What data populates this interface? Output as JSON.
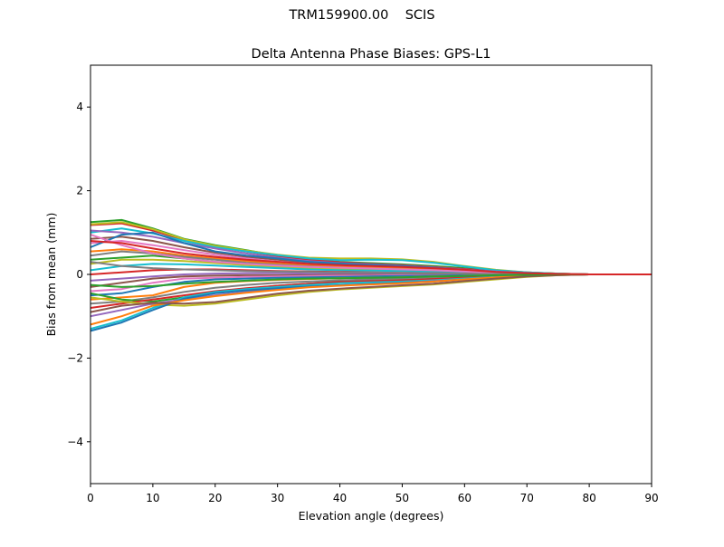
{
  "figure": {
    "suptitle": "TRM159900.00    SCIS"
  },
  "chart_data": {
    "type": "line",
    "title": "Delta Antenna Phase Biases: GPS-L1",
    "xlabel": "Elevation angle (degrees)",
    "ylabel": "Bias from mean (mm)",
    "xlim": [
      0,
      90
    ],
    "ylim": [
      -5,
      5
    ],
    "xticks": [
      0,
      10,
      20,
      30,
      40,
      50,
      60,
      70,
      80,
      90
    ],
    "yticks": [
      -4,
      -2,
      0,
      2,
      4
    ],
    "ytick_labels": [
      "−4",
      "−2",
      "0",
      "2",
      "4"
    ],
    "grid": false,
    "x": [
      0,
      5,
      10,
      15,
      20,
      25,
      30,
      35,
      40,
      45,
      50,
      55,
      60,
      65,
      70,
      75,
      80,
      85,
      90
    ],
    "series": [
      {
        "color": "#2ca02c",
        "values": [
          1.25,
          1.3,
          1.1,
          0.85,
          0.7,
          0.58,
          0.45,
          0.36,
          0.3,
          0.27,
          0.24,
          0.2,
          0.15,
          0.09,
          0.05,
          0.02,
          0.0,
          0.0,
          0.0
        ]
      },
      {
        "color": "#d62728",
        "values": [
          1.18,
          1.22,
          1.05,
          0.82,
          0.66,
          0.55,
          0.44,
          0.35,
          0.29,
          0.25,
          0.22,
          0.18,
          0.13,
          0.08,
          0.04,
          0.02,
          0.0,
          0.0,
          0.0
        ]
      },
      {
        "color": "#bcbd22",
        "values": [
          1.2,
          1.25,
          1.08,
          0.84,
          0.68,
          0.57,
          0.47,
          0.4,
          0.38,
          0.38,
          0.36,
          0.3,
          0.2,
          0.11,
          0.05,
          0.02,
          0.0,
          0.0,
          0.0
        ]
      },
      {
        "color": "#17becf",
        "values": [
          1.0,
          1.1,
          0.98,
          0.8,
          0.65,
          0.55,
          0.46,
          0.38,
          0.34,
          0.35,
          0.34,
          0.28,
          0.19,
          0.1,
          0.05,
          0.02,
          0.0,
          0.0,
          0.0
        ]
      },
      {
        "color": "#9467bd",
        "values": [
          1.05,
          1.0,
          0.9,
          0.75,
          0.62,
          0.5,
          0.4,
          0.32,
          0.27,
          0.24,
          0.21,
          0.17,
          0.12,
          0.07,
          0.04,
          0.01,
          0.0,
          0.0,
          0.0
        ]
      },
      {
        "color": "#8c564b",
        "values": [
          0.85,
          0.9,
          0.8,
          0.65,
          0.52,
          0.42,
          0.35,
          0.28,
          0.24,
          0.22,
          0.2,
          0.16,
          0.11,
          0.06,
          0.03,
          0.01,
          0.0,
          0.0,
          0.0
        ]
      },
      {
        "color": "#e377c2",
        "values": [
          0.75,
          0.8,
          0.7,
          0.58,
          0.47,
          0.38,
          0.31,
          0.25,
          0.21,
          0.19,
          0.17,
          0.14,
          0.1,
          0.06,
          0.03,
          0.01,
          0.0,
          0.0,
          0.0
        ]
      },
      {
        "color": "#1f77b4",
        "values": [
          0.65,
          0.95,
          1.0,
          0.75,
          0.55,
          0.45,
          0.38,
          0.3,
          0.26,
          0.23,
          0.2,
          0.16,
          0.11,
          0.06,
          0.03,
          0.01,
          0.0,
          0.0,
          0.0
        ]
      },
      {
        "color": "#ff7f0e",
        "values": [
          0.55,
          0.6,
          0.55,
          0.45,
          0.38,
          0.32,
          0.26,
          0.21,
          0.18,
          0.16,
          0.14,
          0.11,
          0.08,
          0.05,
          0.02,
          0.01,
          0.0,
          0.0,
          0.0
        ]
      },
      {
        "color": "#7f7f7f",
        "values": [
          0.45,
          0.55,
          0.5,
          0.42,
          0.35,
          0.28,
          0.23,
          0.19,
          0.16,
          0.14,
          0.12,
          0.1,
          0.07,
          0.04,
          0.02,
          0.01,
          0.0,
          0.0,
          0.0
        ]
      },
      {
        "color": "#2ca02c",
        "values": [
          0.35,
          0.4,
          0.45,
          0.38,
          0.3,
          0.25,
          0.2,
          0.17,
          0.14,
          0.12,
          0.11,
          0.09,
          0.06,
          0.04,
          0.02,
          0.01,
          0.0,
          0.0,
          0.0
        ]
      },
      {
        "color": "#bcbd22",
        "values": [
          0.25,
          0.35,
          0.35,
          0.32,
          0.27,
          0.22,
          0.18,
          0.15,
          0.13,
          0.11,
          0.1,
          0.08,
          0.06,
          0.03,
          0.02,
          0.0,
          0.0,
          0.0,
          0.0
        ]
      },
      {
        "color": "#17becf",
        "values": [
          0.1,
          0.2,
          0.25,
          0.24,
          0.21,
          0.18,
          0.15,
          0.12,
          0.1,
          0.09,
          0.08,
          0.06,
          0.04,
          0.03,
          0.01,
          0.0,
          0.0,
          0.0,
          0.0
        ]
      },
      {
        "color": "#d62728",
        "values": [
          0.0,
          0.05,
          0.1,
          0.12,
          0.12,
          0.1,
          0.08,
          0.07,
          0.06,
          0.05,
          0.04,
          0.03,
          0.02,
          0.01,
          0.01,
          0.0,
          0.0,
          0.0,
          0.0
        ]
      },
      {
        "color": "#9467bd",
        "values": [
          -0.15,
          -0.1,
          -0.05,
          0.0,
          0.02,
          0.03,
          0.03,
          0.02,
          0.02,
          0.02,
          0.01,
          0.01,
          0.01,
          0.0,
          0.0,
          0.0,
          0.0,
          0.0,
          0.0
        ]
      },
      {
        "color": "#8c564b",
        "values": [
          -0.3,
          -0.2,
          -0.1,
          -0.05,
          -0.03,
          -0.02,
          -0.02,
          -0.02,
          -0.01,
          -0.01,
          -0.01,
          -0.01,
          0.0,
          0.0,
          0.0,
          0.0,
          0.0,
          0.0,
          0.0
        ]
      },
      {
        "color": "#e377c2",
        "values": [
          -0.4,
          -0.35,
          -0.2,
          -0.1,
          -0.08,
          -0.06,
          -0.05,
          -0.04,
          -0.03,
          -0.03,
          -0.02,
          -0.02,
          -0.01,
          -0.01,
          0.0,
          0.0,
          0.0,
          0.0,
          0.0
        ]
      },
      {
        "color": "#1f77b4",
        "values": [
          -0.5,
          -0.45,
          -0.3,
          -0.18,
          -0.12,
          -0.1,
          -0.08,
          -0.07,
          -0.06,
          -0.05,
          -0.04,
          -0.03,
          -0.02,
          -0.01,
          -0.01,
          0.0,
          0.0,
          0.0,
          0.0
        ]
      },
      {
        "color": "#ff7f0e",
        "values": [
          -0.6,
          -0.55,
          -0.5,
          -0.3,
          -0.2,
          -0.16,
          -0.13,
          -0.11,
          -0.09,
          -0.08,
          -0.07,
          -0.05,
          -0.04,
          -0.02,
          -0.01,
          0.0,
          0.0,
          0.0,
          0.0
        ]
      },
      {
        "color": "#7f7f7f",
        "values": [
          -0.7,
          -0.65,
          -0.55,
          -0.42,
          -0.32,
          -0.25,
          -0.2,
          -0.17,
          -0.14,
          -0.12,
          -0.1,
          -0.08,
          -0.06,
          -0.03,
          -0.02,
          -0.01,
          0.0,
          0.0,
          0.0
        ]
      },
      {
        "color": "#2ca02c",
        "values": [
          -0.45,
          -0.6,
          -0.65,
          -0.55,
          -0.42,
          -0.34,
          -0.27,
          -0.22,
          -0.18,
          -0.16,
          -0.14,
          -0.11,
          -0.08,
          -0.05,
          -0.02,
          -0.01,
          0.0,
          0.0,
          0.0
        ]
      },
      {
        "color": "#d62728",
        "values": [
          -0.8,
          -0.7,
          -0.6,
          -0.5,
          -0.4,
          -0.33,
          -0.27,
          -0.22,
          -0.18,
          -0.16,
          -0.14,
          -0.11,
          -0.08,
          -0.05,
          -0.02,
          -0.01,
          0.0,
          0.0,
          0.0
        ]
      },
      {
        "color": "#bcbd22",
        "values": [
          -0.55,
          -0.65,
          -0.72,
          -0.75,
          -0.7,
          -0.6,
          -0.5,
          -0.42,
          -0.36,
          -0.32,
          -0.28,
          -0.24,
          -0.18,
          -0.12,
          -0.06,
          -0.02,
          0.0,
          0.0,
          0.0
        ]
      },
      {
        "color": "#17becf",
        "values": [
          -1.3,
          -1.1,
          -0.8,
          -0.55,
          -0.42,
          -0.35,
          -0.3,
          -0.25,
          -0.21,
          -0.19,
          -0.17,
          -0.14,
          -0.1,
          -0.06,
          -0.03,
          -0.01,
          0.0,
          0.0,
          0.0
        ]
      },
      {
        "color": "#9467bd",
        "values": [
          -1.0,
          -0.85,
          -0.7,
          -0.6,
          -0.5,
          -0.42,
          -0.35,
          -0.3,
          -0.26,
          -0.23,
          -0.2,
          -0.16,
          -0.12,
          -0.07,
          -0.03,
          -0.01,
          0.0,
          0.0,
          0.0
        ]
      },
      {
        "color": "#1f77b4",
        "values": [
          -1.35,
          -1.15,
          -0.85,
          -0.58,
          -0.45,
          -0.38,
          -0.33,
          -0.29,
          -0.26,
          -0.23,
          -0.2,
          -0.17,
          -0.12,
          -0.07,
          -0.03,
          -0.01,
          0.0,
          0.0,
          0.0
        ]
      },
      {
        "color": "#ff7f0e",
        "values": [
          -1.2,
          -1.0,
          -0.75,
          -0.62,
          -0.52,
          -0.44,
          -0.37,
          -0.31,
          -0.27,
          -0.24,
          -0.21,
          -0.17,
          -0.12,
          -0.07,
          -0.03,
          -0.01,
          0.0,
          0.0,
          0.0
        ]
      },
      {
        "color": "#8c564b",
        "values": [
          -0.9,
          -0.75,
          -0.68,
          -0.7,
          -0.66,
          -0.56,
          -0.46,
          -0.39,
          -0.34,
          -0.3,
          -0.26,
          -0.22,
          -0.16,
          -0.1,
          -0.05,
          -0.02,
          0.0,
          0.0,
          0.0
        ]
      },
      {
        "color": "#e377c2",
        "values": [
          0.95,
          0.7,
          0.5,
          0.38,
          0.3,
          0.25,
          0.21,
          0.18,
          0.16,
          0.14,
          0.12,
          0.1,
          0.07,
          0.04,
          0.02,
          0.01,
          0.0,
          0.0,
          0.0
        ]
      },
      {
        "color": "#7f7f7f",
        "values": [
          0.3,
          0.2,
          0.15,
          0.12,
          0.1,
          0.08,
          0.07,
          0.06,
          0.05,
          0.05,
          0.04,
          0.03,
          0.02,
          0.01,
          0.01,
          0.0,
          0.0,
          0.0,
          0.0
        ]
      },
      {
        "color": "#2ca02c",
        "values": [
          -0.25,
          -0.3,
          -0.28,
          -0.22,
          -0.18,
          -0.15,
          -0.12,
          -0.1,
          -0.09,
          -0.08,
          -0.07,
          -0.05,
          -0.04,
          -0.02,
          -0.01,
          0.0,
          0.0,
          0.0,
          0.0
        ]
      },
      {
        "color": "#d62728",
        "values": [
          0.8,
          0.75,
          0.62,
          0.5,
          0.42,
          0.35,
          0.3,
          0.25,
          0.22,
          0.2,
          0.18,
          0.15,
          0.11,
          0.06,
          0.03,
          0.01,
          0.0,
          0.0,
          0.0
        ]
      }
    ]
  }
}
